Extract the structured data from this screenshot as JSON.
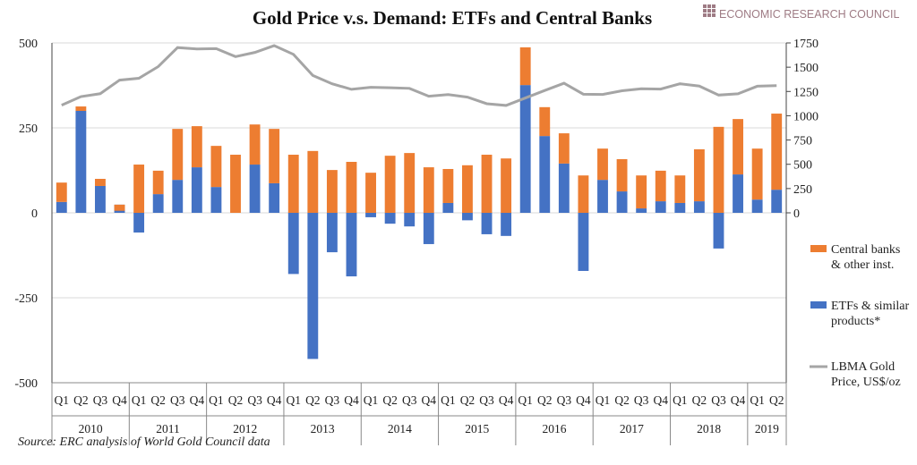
{
  "logo": {
    "text": "ECONOMIC RESEARCH COUNCIL",
    "color": "#9e7b84"
  },
  "source": "Source: ERC analysis of World Gold Council data",
  "chart_data": {
    "type": "bar",
    "title": "Gold Price v.s. Demand: ETFs and Central Banks",
    "years": [
      "2010",
      "2011",
      "2012",
      "2013",
      "2014",
      "2015",
      "2016",
      "2017",
      "2018",
      "2019"
    ],
    "quarters_per_year": [
      4,
      4,
      4,
      4,
      4,
      4,
      4,
      4,
      4,
      2
    ],
    "quarter_labels": [
      "Q1",
      "Q2",
      "Q3",
      "Q4"
    ],
    "left_axis": {
      "ylim": [
        -500,
        500
      ],
      "ticks": [
        500,
        250,
        0,
        -250,
        -500
      ]
    },
    "right_axis": {
      "ylim": [
        0,
        1750
      ],
      "ticks": [
        1750,
        1500,
        1250,
        1000,
        750,
        500,
        250,
        0
      ]
    },
    "grid": true,
    "legend_placement": "right",
    "series": [
      {
        "name": "Central banks & other inst.",
        "type": "stacked-bar",
        "color": "#ed7d31",
        "values": [
          57,
          13,
          21,
          -18,
          142,
          69,
          150,
          121,
          121,
          171,
          118,
          160,
          171,
          182,
          126,
          150,
          118,
          168,
          176,
          134,
          100,
          140,
          171,
          160,
          111,
          85,
          89,
          110,
          92,
          95,
          97,
          90,
          81,
          153,
          253,
          163,
          150,
          224
        ]
      },
      {
        "name": "ETFs & similar products*",
        "type": "stacked-bar",
        "color": "#4472c4",
        "values": [
          32,
          300,
          79,
          24,
          -58,
          55,
          97,
          134,
          76,
          0,
          142,
          87,
          -180,
          -430,
          -116,
          -187,
          -13,
          -32,
          -40,
          -92,
          29,
          -22,
          -63,
          -68,
          376,
          226,
          145,
          -171,
          97,
          63,
          13,
          34,
          29,
          34,
          -105,
          113,
          39,
          68
        ]
      },
      {
        "name": "LBMA Gold Price, US$/oz",
        "type": "line",
        "axis": "right",
        "color": "#a5a5a5",
        "values": [
          1109,
          1197,
          1227,
          1367,
          1386,
          1506,
          1702,
          1688,
          1691,
          1609,
          1652,
          1722,
          1632,
          1415,
          1329,
          1272,
          1293,
          1288,
          1282,
          1201,
          1218,
          1192,
          1124,
          1106,
          1183,
          1260,
          1335,
          1222,
          1219,
          1257,
          1278,
          1275,
          1329,
          1306,
          1213,
          1226,
          1304,
          1310
        ]
      }
    ],
    "legend": [
      {
        "line1": "Central banks",
        "line2": "& other inst."
      },
      {
        "line1": "ETFs & similar",
        "line2": "products*"
      },
      {
        "line1": "LBMA Gold",
        "line2": "Price, US$/oz"
      }
    ]
  }
}
